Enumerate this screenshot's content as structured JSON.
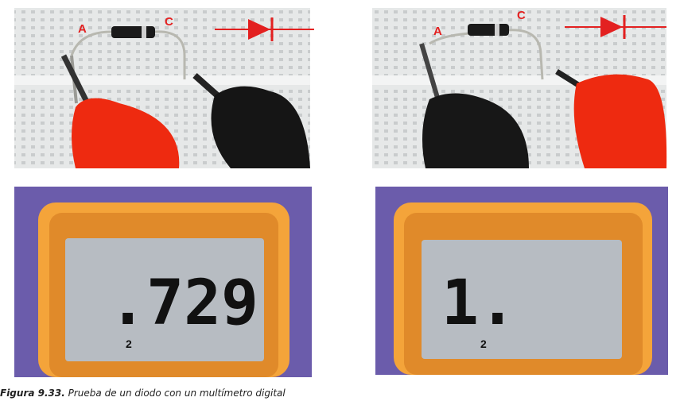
{
  "figure": {
    "number": "Figura 9.33.",
    "caption": "Prueba de un diodo con un multímetro digital"
  },
  "photos": [
    {
      "anode_label": "A",
      "cathode_label": "C"
    },
    {
      "anode_label": "A",
      "cathode_label": "C"
    }
  ],
  "displays": [
    {
      "reading": ".729",
      "range": "2"
    },
    {
      "reading": "1.",
      "range": "2"
    }
  ]
}
